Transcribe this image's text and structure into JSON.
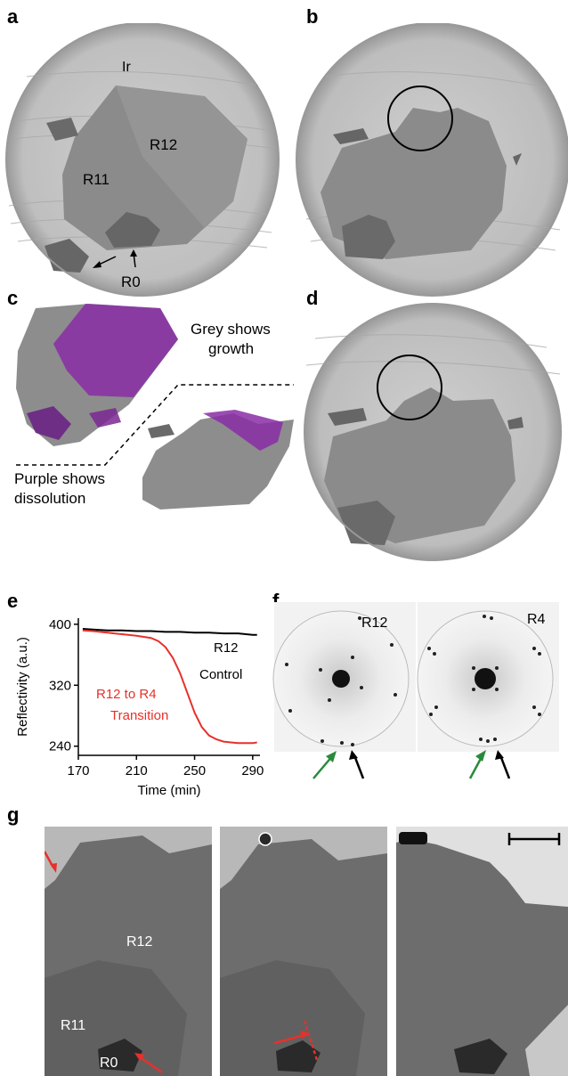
{
  "panels": {
    "a": {
      "letter": "a",
      "labels": {
        "ir": "Ir",
        "r12": "R12",
        "r11": "R11",
        "r0": "R0"
      }
    },
    "b": {
      "letter": "b"
    },
    "c": {
      "letter": "c",
      "grey_note_1": "Grey shows",
      "grey_note_2": "growth",
      "purple_note_1": "Purple shows",
      "purple_note_2": "dissolution"
    },
    "d": {
      "letter": "d"
    },
    "e": {
      "letter": "e"
    },
    "f": {
      "letter": "f",
      "left_label": "R12",
      "right_label": "R4"
    },
    "g": {
      "letter": "g",
      "labels": {
        "r12": "R12",
        "r11": "R11",
        "r0": "R0"
      }
    }
  },
  "colors": {
    "purple": "#8a2da6",
    "red": "#e8302a",
    "green": "#2a8a3a",
    "black": "#000000"
  },
  "chart_data": {
    "type": "line",
    "xlabel": "Time (min)",
    "ylabel": "Reflectivity (a.u.)",
    "xlim": [
      170,
      295
    ],
    "ylim": [
      228,
      408
    ],
    "xticks": [
      170,
      210,
      250,
      290
    ],
    "yticks": [
      240,
      320,
      400
    ],
    "annotations": [
      "R12",
      "Control",
      "R12 to R4",
      "Transition"
    ],
    "series": [
      {
        "name": "R12 Control",
        "color": "#000000",
        "x": [
          173,
          180,
          190,
          200,
          210,
          220,
          230,
          240,
          250,
          260,
          270,
          280,
          290,
          293
        ],
        "y": [
          394,
          393,
          392,
          392,
          391,
          391,
          390,
          390,
          389,
          389,
          388,
          388,
          386,
          386
        ]
      },
      {
        "name": "R12 to R4 Transition",
        "color": "#e8302a",
        "x": [
          173,
          180,
          190,
          200,
          210,
          220,
          225,
          230,
          235,
          240,
          245,
          250,
          255,
          260,
          265,
          270,
          275,
          280,
          285,
          290,
          293
        ],
        "y": [
          392,
          391,
          389,
          387,
          385,
          382,
          378,
          370,
          356,
          336,
          310,
          284,
          265,
          254,
          249,
          246,
          245,
          244,
          244,
          244,
          245
        ]
      }
    ]
  }
}
